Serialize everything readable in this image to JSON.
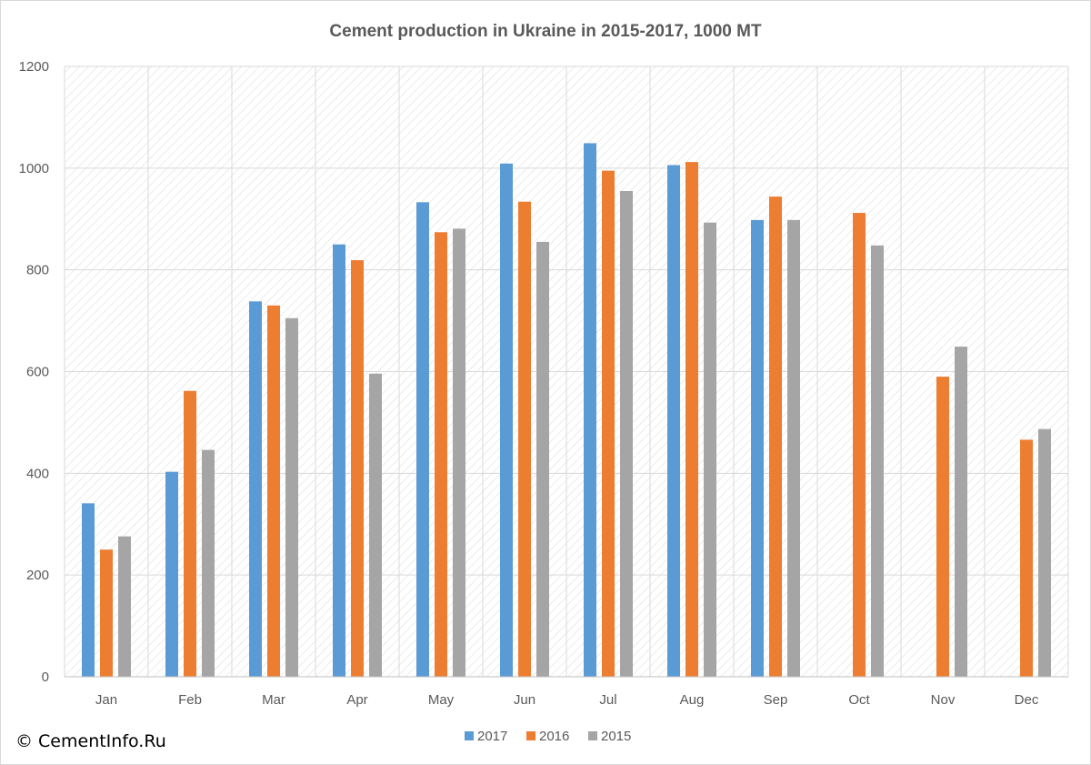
{
  "chart_data": {
    "type": "bar",
    "title": "Cement production in Ukraine in 2015-2017, 1000 MT",
    "categories": [
      "Jan",
      "Feb",
      "Mar",
      "Apr",
      "May",
      "Jun",
      "Jul",
      "Aug",
      "Sep",
      "Oct",
      "Nov",
      "Dec"
    ],
    "series": [
      {
        "name": "2017",
        "color": "#5b9bd5",
        "values": [
          341,
          403,
          738,
          850,
          933,
          1009,
          1049,
          1006,
          898,
          null,
          null,
          null
        ]
      },
      {
        "name": "2016",
        "color": "#ed7d31",
        "values": [
          250,
          562,
          730,
          819,
          874,
          934,
          995,
          1012,
          944,
          912,
          590,
          466
        ]
      },
      {
        "name": "2015",
        "color": "#a5a5a5",
        "values": [
          276,
          446,
          705,
          596,
          881,
          855,
          955,
          893,
          898,
          848,
          649,
          487
        ]
      }
    ],
    "ylim": [
      0,
      1200
    ],
    "yticks": [
      0,
      200,
      400,
      600,
      800,
      1000,
      1200
    ],
    "grid": true,
    "legend": "bottom"
  },
  "copyright": "© CementInfo.Ru"
}
